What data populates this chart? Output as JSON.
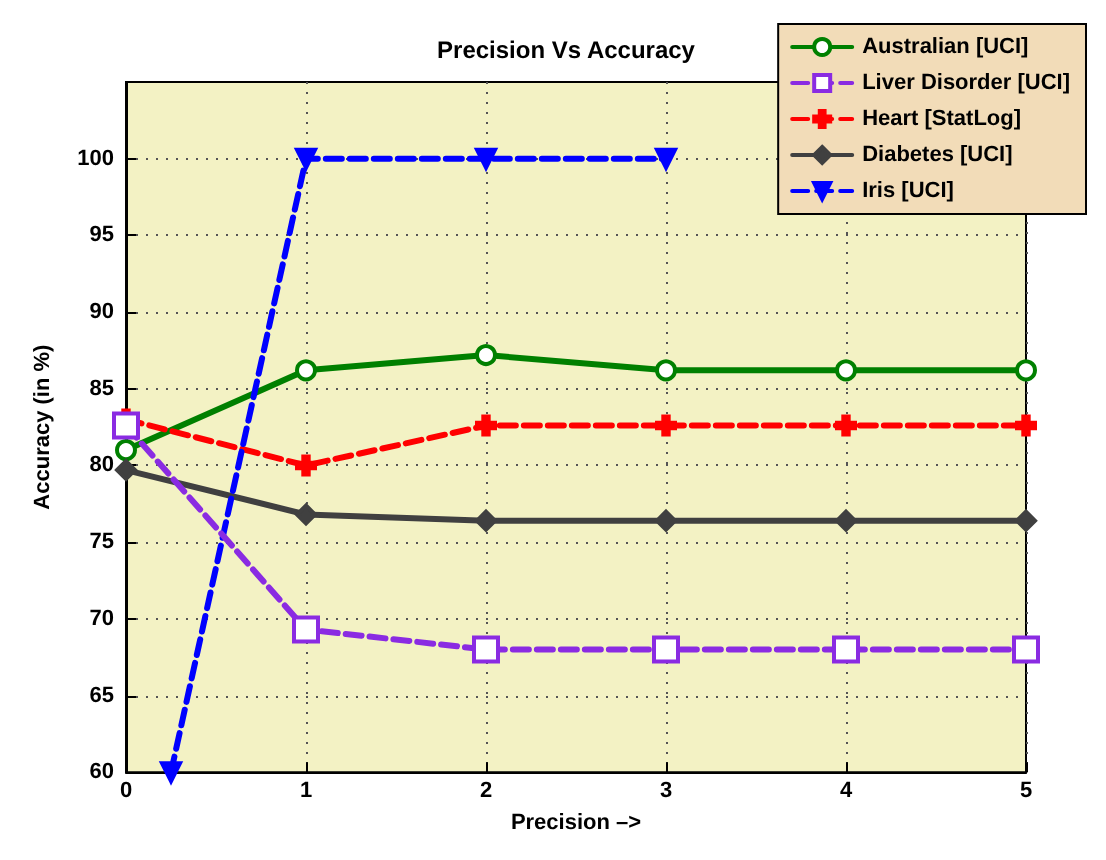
{
  "chart_data": {
    "type": "line",
    "title": "Precision Vs Accuracy",
    "xlabel": "Precision –>",
    "ylabel": "Accuracy (in %)",
    "x": [
      0,
      1,
      2,
      3,
      4,
      5
    ],
    "series": [
      {
        "name": "Australian [UCI]",
        "color": "#008000",
        "marker": "circle",
        "line_style": "solid",
        "values": [
          81,
          86.2,
          87.2,
          86.2,
          86.2,
          86.2
        ]
      },
      {
        "name": "Liver Disorder [UCI]",
        "color": "#8a2be2",
        "marker": "square",
        "line_style": "dashed",
        "values": [
          82.6,
          69.3,
          68,
          68,
          68,
          68
        ]
      },
      {
        "name": "Heart [StatLog]",
        "color": "#ff0000",
        "marker": "cross",
        "line_style": "dashed",
        "values": [
          83,
          80,
          82.6,
          82.6,
          82.6,
          82.6
        ]
      },
      {
        "name": "Diabetes [UCI]",
        "color": "#404040",
        "marker": "diamond",
        "line_style": "solid",
        "values": [
          79.7,
          76.8,
          76.4,
          76.4,
          76.4,
          76.4
        ]
      },
      {
        "name": "Iris [UCI]",
        "color": "#0000ff",
        "marker": "triangle",
        "line_style": "dashed",
        "x": [
          0.25,
          1,
          2,
          3
        ],
        "values": [
          60,
          100,
          100,
          100
        ]
      }
    ],
    "xlim": [
      0,
      5
    ],
    "xticks": [
      0,
      1,
      2,
      3,
      4,
      5
    ],
    "ylim": [
      60,
      105
    ],
    "yticks": [
      60,
      65,
      70,
      75,
      80,
      85,
      90,
      95,
      100
    ],
    "grid": true,
    "legend": "top right"
  }
}
